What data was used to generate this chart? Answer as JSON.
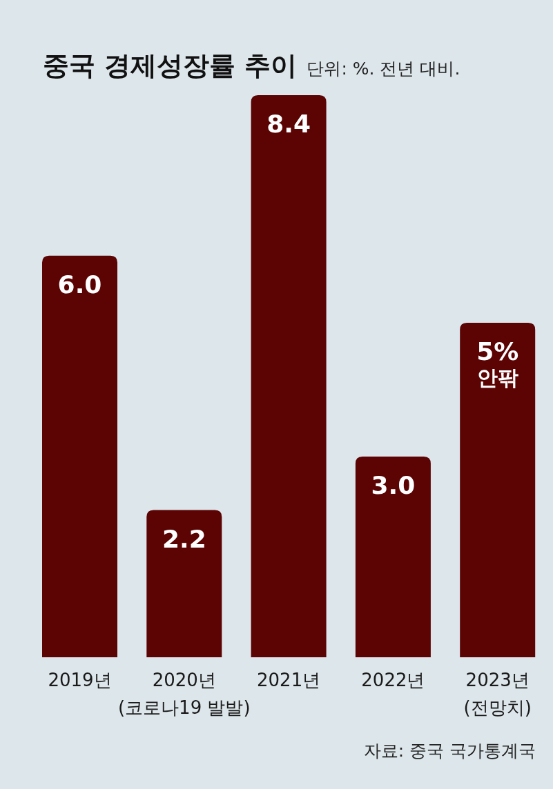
{
  "chart_data": {
    "type": "bar",
    "title": "중국 경제성장률 추이",
    "subtitle": "단위: %. 전년 대비.",
    "categories": [
      "2019년",
      "2020년 (코로나19 발발)",
      "2021년",
      "2022년",
      "2023년 (전망치)"
    ],
    "values": [
      6.0,
      2.2,
      8.4,
      3.0,
      5
    ],
    "value_labels": [
      "6.0",
      "2.2",
      "8.4",
      "3.0",
      "5% 안팎"
    ],
    "color": "#5c0303",
    "annotations": [
      "자료: 중국 국가통계국"
    ]
  }
}
